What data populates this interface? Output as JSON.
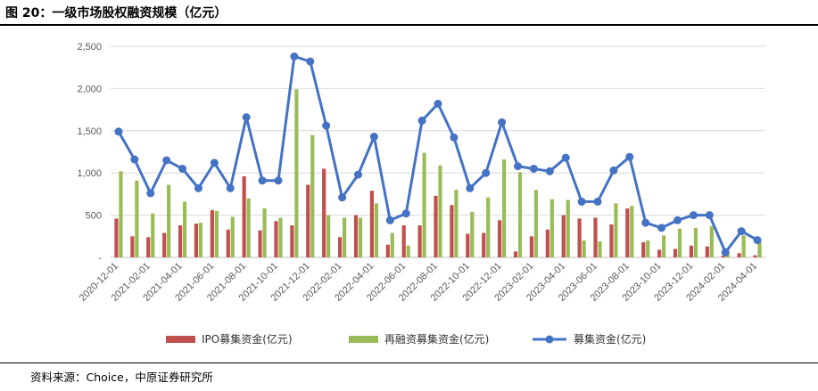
{
  "header": {
    "title": "图 20：一级市场股权融资规模（亿元）"
  },
  "footer": {
    "source": "资料来源：Choice，中原证券研究所"
  },
  "colors": {
    "ipo": "#C0504D",
    "refinance": "#9BBB59",
    "total": "#4472C4",
    "grid": "#D9D9D9",
    "axis": "#BFBFBF"
  },
  "chart_data": {
    "type": "bar",
    "title": "一级市场股权融资规模（亿元）",
    "ylim": [
      0,
      2500
    ],
    "yticks": [
      0,
      500,
      1000,
      1500,
      2000,
      2500
    ],
    "ytick_labels": [
      "-",
      "500",
      "1,000",
      "1,500",
      "2,000",
      "2,500"
    ],
    "grid": true,
    "legend_position": "bottom",
    "categories": [
      "2020-12-01",
      "2021-01-01",
      "2021-02-01",
      "2021-03-01",
      "2021-04-01",
      "2021-05-01",
      "2021-06-01",
      "2021-07-01",
      "2021-08-01",
      "2021-09-01",
      "2021-10-01",
      "2021-11-01",
      "2021-12-01",
      "2022-01-01",
      "2022-02-01",
      "2022-03-01",
      "2022-04-01",
      "2022-05-01",
      "2022-06-01",
      "2022-07-01",
      "2022-08-01",
      "2022-09-01",
      "2022-10-01",
      "2022-11-01",
      "2022-12-01",
      "2023-01-01",
      "2023-02-01",
      "2023-03-01",
      "2023-04-01",
      "2023-05-01",
      "2023-06-01",
      "2023-07-01",
      "2023-08-01",
      "2023-09-01",
      "2023-10-01",
      "2023-11-01",
      "2023-12-01",
      "2024-01-01",
      "2024-02-01",
      "2024-03-01",
      "2024-04-01"
    ],
    "x_tick_labels": [
      "2020-12-01",
      "",
      "2021-02-01",
      "",
      "2021-04-01",
      "",
      "2021-06-01",
      "",
      "2021-08-01",
      "",
      "2021-10-01",
      "",
      "2021-12-01",
      "",
      "2022-02-01",
      "",
      "2022-04-01",
      "",
      "2022-06-01",
      "",
      "2022-08-01",
      "",
      "2022-10-01",
      "",
      "2022-12-01",
      "",
      "2023-02-01",
      "",
      "2023-04-01",
      "",
      "2023-06-01",
      "",
      "2023-08-01",
      "",
      "2023-10-01",
      "",
      "2023-12-01",
      "",
      "2024-02-01",
      "",
      "2024-04-01"
    ],
    "series": [
      {
        "name": "IPO募集资金(亿元)",
        "type": "bar",
        "values": [
          460,
          250,
          240,
          290,
          380,
          400,
          560,
          330,
          960,
          320,
          430,
          380,
          860,
          1050,
          240,
          500,
          790,
          150,
          380,
          380,
          730,
          620,
          280,
          290,
          440,
          70,
          250,
          330,
          500,
          460,
          470,
          390,
          580,
          180,
          90,
          100,
          140,
          130,
          20,
          50,
          25
        ]
      },
      {
        "name": "再融资募集资金(亿元)",
        "type": "bar",
        "values": [
          1020,
          910,
          520,
          860,
          660,
          410,
          550,
          480,
          700,
          580,
          470,
          1990,
          1450,
          500,
          470,
          470,
          640,
          290,
          140,
          1240,
          1090,
          800,
          540,
          710,
          1160,
          1010,
          800,
          690,
          680,
          200,
          190,
          640,
          610,
          200,
          260,
          340,
          350,
          370,
          40,
          260,
          180
        ]
      },
      {
        "name": "募集资金(亿元)",
        "type": "line",
        "values": [
          1490,
          1160,
          760,
          1150,
          1050,
          820,
          1120,
          820,
          1660,
          910,
          910,
          2380,
          2320,
          1560,
          710,
          980,
          1430,
          440,
          520,
          1620,
          1820,
          1420,
          820,
          1000,
          1600,
          1080,
          1050,
          1020,
          1180,
          660,
          660,
          1030,
          1190,
          410,
          350,
          440,
          500,
          500,
          60,
          310,
          205
        ]
      }
    ]
  }
}
